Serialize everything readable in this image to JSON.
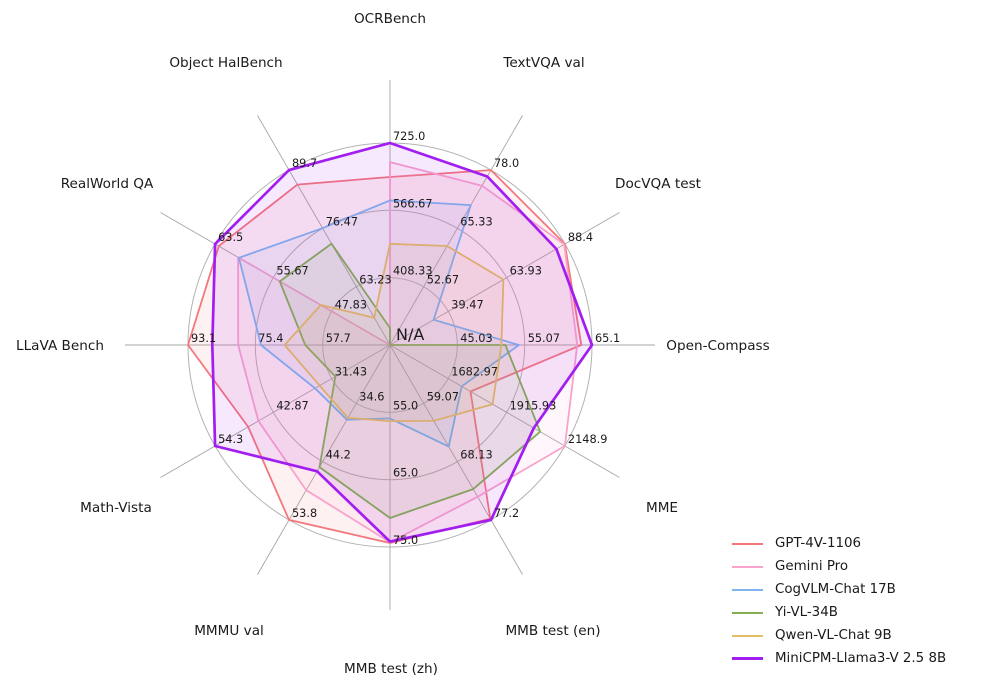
{
  "chart_data": {
    "type": "radar",
    "title": "",
    "center_label": "N/A",
    "grid": true,
    "rings": 3,
    "legend_position": "lower right",
    "axes": [
      {
        "label": "OCRBench",
        "outer": 725.0,
        "center": 250.0,
        "ticks": [
          "725.0",
          "566.67",
          "408.33"
        ]
      },
      {
        "label": "TextVQA val",
        "outer": 78.0,
        "center": 40.0,
        "ticks": [
          "78.0",
          "65.33",
          "52.67"
        ]
      },
      {
        "label": "DocVQA test",
        "outer": 88.4,
        "center": 15.0,
        "ticks": [
          "88.4",
          "63.93",
          "39.47"
        ]
      },
      {
        "label": "Open-Compass",
        "outer": 65.1,
        "center": 35.0,
        "ticks": [
          "65.1",
          "55.07",
          "45.03"
        ]
      },
      {
        "label": "MME",
        "outer": 2148.9,
        "center": 1450.0,
        "ticks": [
          "2148.9",
          "1915.93",
          "1682.97"
        ]
      },
      {
        "label": "MMB test (en)",
        "outer": 77.2,
        "center": 50.0,
        "ticks": [
          "77.2",
          "68.13",
          "59.07"
        ]
      },
      {
        "label": "MMB test (zh)",
        "outer": 75.0,
        "center": 45.0,
        "ticks": [
          "75.0",
          "65.0",
          "55.0"
        ]
      },
      {
        "label": "MMMU val",
        "outer": 53.8,
        "center": 25.0,
        "ticks": [
          "53.8",
          "44.2",
          "34.6"
        ]
      },
      {
        "label": "Math-Vista",
        "outer": 54.3,
        "center": 20.0,
        "ticks": [
          "54.3",
          "42.87",
          "31.43"
        ]
      },
      {
        "label": "LLaVA Bench",
        "outer": 93.1,
        "center": 40.0,
        "ticks": [
          "93.1",
          "75.4",
          "57.7"
        ]
      },
      {
        "label": "RealWorld QA",
        "outer": 63.5,
        "center": 40.0,
        "ticks": [
          "63.5",
          "55.67",
          "47.83"
        ]
      },
      {
        "label": "Object HalBench",
        "outer": 89.7,
        "center": 50.0,
        "ticks": [
          "89.7",
          "76.47",
          "63.23"
        ]
      }
    ],
    "series": [
      {
        "name": "GPT-4V-1106",
        "color": "#F4777C",
        "line_width": 1.8,
        "values": [
          645,
          78.0,
          88.4,
          63.5,
          1771.5,
          77.0,
          74.4,
          53.8,
          47.8,
          93.1,
          63.0,
          86.4
        ]
      },
      {
        "name": "Gemini Pro",
        "color": "#F8A3CC",
        "line_width": 1.8,
        "values": [
          680,
          74.6,
          88.1,
          62.9,
          2148.9,
          73.6,
          74.3,
          48.9,
          45.8,
          79.9,
          60.4,
          null
        ]
      },
      {
        "name": "CogVLM-Chat 17B",
        "color": "#7EB5EE",
        "line_width": 1.8,
        "values": [
          590,
          70.4,
          33.3,
          54.2,
          1736.6,
          65.8,
          55.9,
          37.3,
          34.7,
          73.9,
          60.3,
          76.5
        ]
      },
      {
        "name": "Yi-VL-34B",
        "color": "#83B052",
        "line_width": 1.8,
        "values": [
          290,
          null,
          null,
          52.2,
          2050.2,
          72.4,
          70.7,
          45.1,
          30.7,
          62.3,
          54.8,
          73.0
        ]
      },
      {
        "name": "Qwen-VL-Chat 9B",
        "color": "#E2BE64",
        "line_width": 1.8,
        "values": [
          488,
          61.5,
          62.6,
          51.6,
          1860.0,
          61.8,
          56.3,
          37.0,
          33.8,
          67.7,
          49.3,
          56.2
        ]
      },
      {
        "name": "MiniCPM-Llama3-V 2.5 8B",
        "color": "#A21EF0",
        "line_width": 2.7,
        "values": [
          725,
          76.6,
          84.8,
          65.1,
          2024.6,
          77.2,
          74.2,
          45.8,
          54.3,
          86.7,
          63.5,
          89.7
        ]
      }
    ]
  }
}
